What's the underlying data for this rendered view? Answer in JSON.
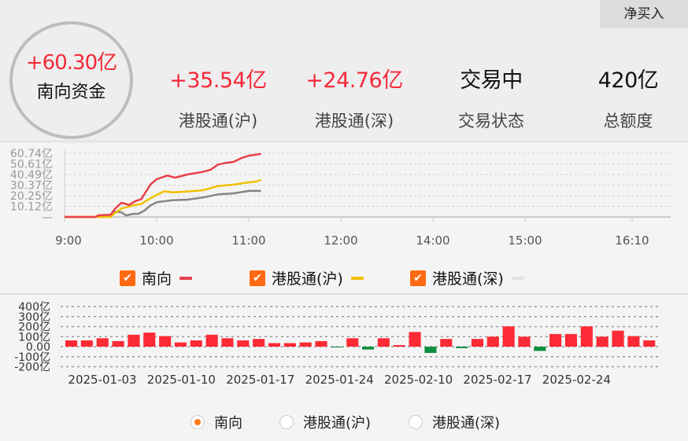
{
  "header": {
    "mode_button": "净买入",
    "total": {
      "value": "+60.30亿",
      "label": "南向资金"
    },
    "stats": [
      {
        "value": "+35.54亿",
        "label": "港股通(沪)",
        "color": "#f5293a"
      },
      {
        "value": "+24.76亿",
        "label": "港股通(深)",
        "color": "#f5293a"
      },
      {
        "value": "交易中",
        "label": "交易状态",
        "color": "#111111"
      },
      {
        "value": "420亿",
        "label": "总额度",
        "color": "#111111"
      }
    ]
  },
  "intraday_chart": {
    "chart_data": {
      "type": "line",
      "y_ticks": [
        "60.74亿",
        "50.61亿",
        "40.49亿",
        "30.37亿",
        "20.25亿",
        "10.12亿",
        "—"
      ],
      "y_tick_values": [
        60.74,
        50.61,
        40.49,
        30.37,
        20.25,
        10.12,
        0
      ],
      "ylim": [
        0,
        60.74
      ],
      "x_ticks": [
        "9:00",
        "10:00",
        "11:00",
        "12:00",
        "14:00",
        "15:00",
        "16:10"
      ],
      "grid": true,
      "series": [
        {
          "name": "南向",
          "color": "#e8404a",
          "points": [
            [
              "9:00",
              0
            ],
            [
              "9:20",
              0
            ],
            [
              "9:22",
              1.5
            ],
            [
              "9:30",
              2
            ],
            [
              "9:33",
              8
            ],
            [
              "9:37",
              13.5
            ],
            [
              "9:42",
              11.5
            ],
            [
              "9:46",
              15
            ],
            [
              "9:50",
              17
            ],
            [
              "9:53",
              24
            ],
            [
              "9:56",
              31
            ],
            [
              "10:00",
              36
            ],
            [
              "10:07",
              39.5
            ],
            [
              "10:12",
              37.5
            ],
            [
              "10:20",
              40.5
            ],
            [
              "10:30",
              43
            ],
            [
              "10:35",
              45
            ],
            [
              "10:40",
              50
            ],
            [
              "10:45",
              51.5
            ],
            [
              "10:50",
              52.5
            ],
            [
              "10:55",
              56
            ],
            [
              "11:00",
              58.5
            ],
            [
              "11:05",
              59.5
            ],
            [
              "11:08",
              60.3
            ]
          ]
        },
        {
          "name": "港股通(沪)",
          "color": "#f0c000",
          "points": [
            [
              "9:00",
              0
            ],
            [
              "9:20",
              0
            ],
            [
              "9:22",
              0
            ],
            [
              "9:30",
              0
            ],
            [
              "9:33",
              4
            ],
            [
              "9:37",
              8
            ],
            [
              "9:42",
              10
            ],
            [
              "9:46",
              11.5
            ],
            [
              "9:50",
              12.5
            ],
            [
              "9:55",
              17
            ],
            [
              "10:00",
              21
            ],
            [
              "10:05",
              24.5
            ],
            [
              "10:10",
              23.5
            ],
            [
              "10:20",
              24.3
            ],
            [
              "10:30",
              25.5
            ],
            [
              "10:40",
              29.5
            ],
            [
              "10:50",
              30.8
            ],
            [
              "11:00",
              33
            ],
            [
              "11:05",
              33.8
            ],
            [
              "11:08",
              35.54
            ]
          ]
        },
        {
          "name": "港股通(深)",
          "color": "#858585",
          "points": [
            [
              "9:00",
              0
            ],
            [
              "9:20",
              0
            ],
            [
              "9:22",
              1.5
            ],
            [
              "9:30",
              2
            ],
            [
              "9:33",
              5
            ],
            [
              "9:37",
              4.5
            ],
            [
              "9:40",
              1.5
            ],
            [
              "9:45",
              3
            ],
            [
              "9:48",
              3
            ],
            [
              "9:52",
              6
            ],
            [
              "9:56",
              11
            ],
            [
              "10:00",
              14
            ],
            [
              "10:10",
              16
            ],
            [
              "10:20",
              16.5
            ],
            [
              "10:30",
              18.5
            ],
            [
              "10:40",
              21.5
            ],
            [
              "10:50",
              22.5
            ],
            [
              "11:00",
              24.8
            ],
            [
              "11:05",
              25
            ],
            [
              "11:08",
              24.76
            ]
          ]
        }
      ]
    }
  },
  "legend": [
    {
      "label": "南向",
      "color": "#e8404a",
      "checked": true
    },
    {
      "label": "港股通(沪)",
      "color": "#f0c000",
      "checked": true
    },
    {
      "label": "港股通(深)",
      "color": "#e2e2e2",
      "checked": true
    }
  ],
  "check_glyph": "✔",
  "daily_chart": {
    "chart_data": {
      "type": "bar",
      "y_ticks": [
        "400亿",
        "300亿",
        "200亿",
        "100亿",
        "0.00",
        "-100亿",
        "-200亿"
      ],
      "y_tick_values": [
        400,
        300,
        200,
        100,
        0,
        -100,
        -200
      ],
      "ylim": [
        -200,
        400
      ],
      "x_ticks": [
        "2025-01-03",
        "2025-01-10",
        "2025-01-17",
        "2025-01-24",
        "2025-02-10",
        "2025-02-17",
        "2025-02-24"
      ],
      "grid": true,
      "positive_color": "#fc2a35",
      "negative_color": "#0e8f3f",
      "values": [
        63,
        63,
        84,
        56,
        119,
        140,
        105,
        42,
        63,
        119,
        84,
        63,
        77,
        35,
        35,
        42,
        56,
        -3,
        84,
        -28,
        84,
        16,
        147,
        -63,
        77,
        -15,
        77,
        100,
        202,
        100,
        -42,
        126,
        126,
        202,
        100,
        160,
        105,
        63
      ]
    }
  },
  "radios": [
    {
      "label": "南向",
      "selected": true
    },
    {
      "label": "港股通(沪)",
      "selected": false
    },
    {
      "label": "港股通(深)",
      "selected": false
    }
  ]
}
